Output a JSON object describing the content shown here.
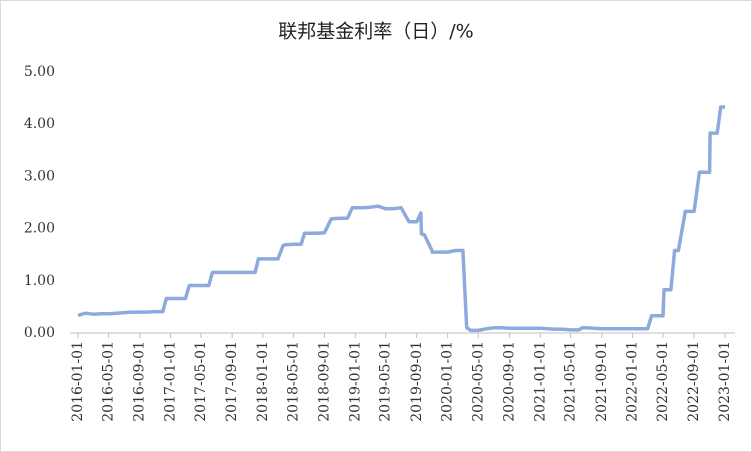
{
  "chart_data": {
    "type": "line",
    "title": "联邦基金利率（日）/%",
    "x": [
      "2016-01-01",
      "2016-02-01",
      "2016-03-01",
      "2016-04-01",
      "2016-05-01",
      "2016-06-01",
      "2016-07-01",
      "2016-08-01",
      "2016-09-01",
      "2016-10-01",
      "2016-11-01",
      "2016-12-01",
      "2016-12-15",
      "2017-01-01",
      "2017-02-01",
      "2017-03-01",
      "2017-03-16",
      "2017-04-01",
      "2017-05-01",
      "2017-06-01",
      "2017-06-15",
      "2017-07-01",
      "2017-08-01",
      "2017-09-01",
      "2017-10-01",
      "2017-11-01",
      "2017-12-01",
      "2017-12-14",
      "2018-01-01",
      "2018-02-01",
      "2018-03-01",
      "2018-03-22",
      "2018-04-01",
      "2018-05-01",
      "2018-06-01",
      "2018-06-14",
      "2018-07-01",
      "2018-08-01",
      "2018-09-01",
      "2018-09-27",
      "2018-10-01",
      "2018-11-01",
      "2018-12-01",
      "2018-12-20",
      "2019-01-01",
      "2019-02-01",
      "2019-03-01",
      "2019-04-01",
      "2019-05-01",
      "2019-06-01",
      "2019-07-01",
      "2019-08-01",
      "2019-09-01",
      "2019-09-17",
      "2019-09-19",
      "2019-10-01",
      "2019-10-31",
      "2019-11-01",
      "2019-12-01",
      "2020-01-01",
      "2020-02-01",
      "2020-03-01",
      "2020-03-16",
      "2020-04-01",
      "2020-05-01",
      "2020-06-01",
      "2020-07-01",
      "2020-08-01",
      "2020-09-01",
      "2020-10-01",
      "2020-11-01",
      "2020-12-01",
      "2021-01-01",
      "2021-02-01",
      "2021-03-01",
      "2021-04-01",
      "2021-05-01",
      "2021-06-01",
      "2021-06-17",
      "2021-07-01",
      "2021-08-01",
      "2021-09-01",
      "2021-10-01",
      "2021-11-01",
      "2021-12-01",
      "2022-01-01",
      "2022-02-01",
      "2022-03-01",
      "2022-03-17",
      "2022-04-01",
      "2022-05-01",
      "2022-05-05",
      "2022-06-01",
      "2022-06-16",
      "2022-07-01",
      "2022-07-28",
      "2022-08-01",
      "2022-09-01",
      "2022-09-22",
      "2022-10-01",
      "2022-11-01",
      "2022-11-03",
      "2022-12-01",
      "2022-12-15",
      "2023-01-01"
    ],
    "series": [
      {
        "color": "#8eaadc",
        "values": [
          0.34,
          0.38,
          0.36,
          0.37,
          0.37,
          0.38,
          0.39,
          0.4,
          0.4,
          0.4,
          0.41,
          0.41,
          0.66,
          0.66,
          0.66,
          0.66,
          0.91,
          0.91,
          0.91,
          0.91,
          1.16,
          1.16,
          1.16,
          1.16,
          1.16,
          1.16,
          1.16,
          1.42,
          1.42,
          1.42,
          1.42,
          1.68,
          1.69,
          1.7,
          1.7,
          1.91,
          1.91,
          1.91,
          1.92,
          2.18,
          2.19,
          2.2,
          2.2,
          2.4,
          2.4,
          2.4,
          2.41,
          2.43,
          2.38,
          2.38,
          2.4,
          2.13,
          2.13,
          2.3,
          1.9,
          1.88,
          1.58,
          1.55,
          1.55,
          1.55,
          1.58,
          1.58,
          0.1,
          0.05,
          0.05,
          0.08,
          0.1,
          0.1,
          0.09,
          0.09,
          0.09,
          0.09,
          0.09,
          0.08,
          0.07,
          0.07,
          0.06,
          0.06,
          0.1,
          0.1,
          0.09,
          0.08,
          0.08,
          0.08,
          0.08,
          0.08,
          0.08,
          0.08,
          0.33,
          0.33,
          0.33,
          0.83,
          0.83,
          1.58,
          1.58,
          2.33,
          2.33,
          2.33,
          3.08,
          3.08,
          3.08,
          3.83,
          3.83,
          4.33,
          4.33
        ]
      }
    ],
    "xlim": [
      "2016-01-01",
      "2023-01-01"
    ],
    "xticks": [
      "2016-01-01",
      "2016-05-01",
      "2016-09-01",
      "2017-01-01",
      "2017-05-01",
      "2017-09-01",
      "2018-01-01",
      "2018-05-01",
      "2018-09-01",
      "2019-01-01",
      "2019-05-01",
      "2019-09-01",
      "2020-01-01",
      "2020-05-01",
      "2020-09-01",
      "2021-01-01",
      "2021-05-01",
      "2021-09-01",
      "2022-01-01",
      "2022-05-01",
      "2022-09-01",
      "2023-01-01"
    ],
    "ylim": [
      0,
      5
    ],
    "yticks": [
      {
        "value": 0,
        "label": "0.00"
      },
      {
        "value": 1,
        "label": "1.00"
      },
      {
        "value": 2,
        "label": "2.00"
      },
      {
        "value": 3,
        "label": "3.00"
      },
      {
        "value": 4,
        "label": "4.00"
      },
      {
        "value": 5,
        "label": "5.00"
      }
    ]
  }
}
